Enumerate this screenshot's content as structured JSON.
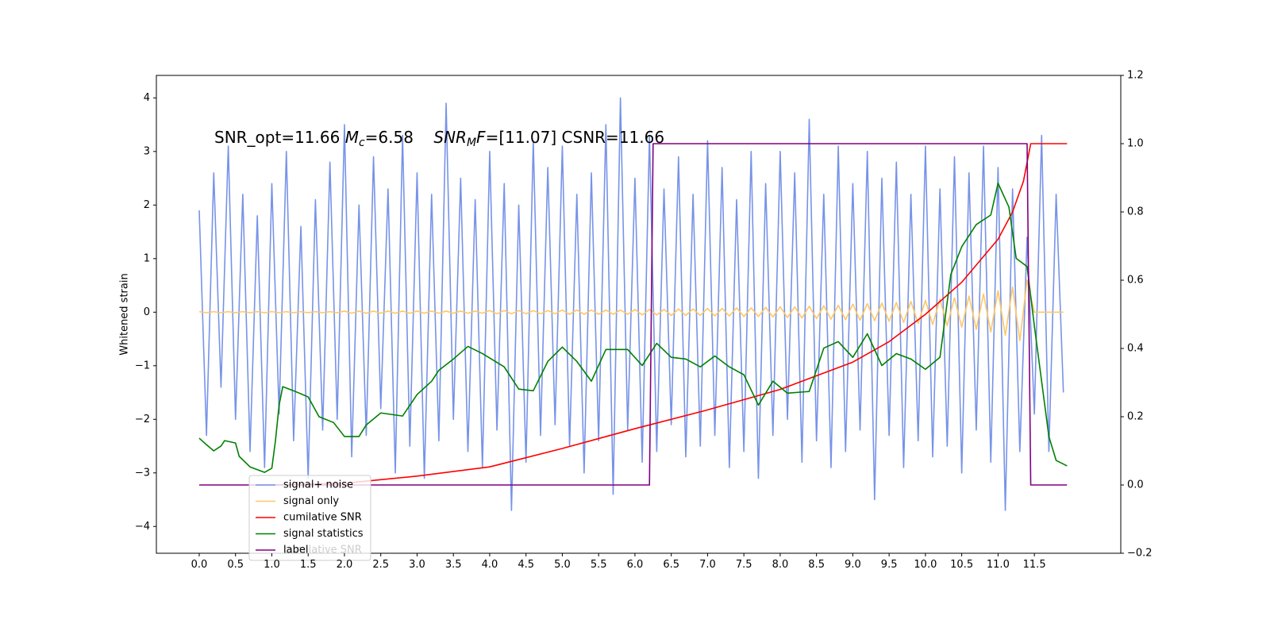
{
  "chart_data": {
    "type": "line",
    "y_label": "Whitened strain",
    "annotation_parts": [
      "SNR_opt=11.66 ",
      "M",
      "c",
      "=6.58    ",
      "SNR",
      "M",
      "F",
      "=[11.07] CSNR=11.66"
    ],
    "xlim": [
      -0.59,
      12.69
    ],
    "ylim": [
      -4.5,
      4.42
    ],
    "y2lim": [
      -0.2,
      1.2
    ],
    "xticks": [
      {
        "value": 0,
        "label": "0.0"
      },
      0.5,
      {
        "value": 1,
        "label": "1.0"
      },
      1.5,
      {
        "value": 2,
        "label": "2.0"
      },
      2.5,
      {
        "value": 3,
        "label": "3.0"
      },
      3.5,
      {
        "value": 4,
        "label": "4.0"
      },
      4.5,
      {
        "value": 5,
        "label": "5.0"
      },
      5.5,
      {
        "value": 6,
        "label": "6.0"
      },
      6.5,
      {
        "value": 7,
        "label": "7.0"
      },
      7.5,
      {
        "value": 8,
        "label": "8.0"
      },
      8.5,
      {
        "value": 9,
        "label": "9.0"
      },
      9.5,
      {
        "value": 10,
        "label": "10.0"
      },
      10.5,
      {
        "value": 11,
        "label": "11.0"
      },
      11.5
    ],
    "yticks": [
      {
        "value": -4,
        "label": "−4"
      },
      {
        "value": -3,
        "label": "−3"
      },
      {
        "value": -2,
        "label": "−2"
      },
      {
        "value": -1,
        "label": "−1"
      },
      0,
      1,
      2,
      3,
      4
    ],
    "y2ticks": [
      {
        "value": -0.2,
        "label": "−0.2"
      },
      {
        "value": 0,
        "label": "0.0"
      },
      0.2,
      0.4,
      0.6,
      0.8,
      {
        "value": 1,
        "label": "1.0"
      },
      1.2
    ],
    "grid": false,
    "legend": "lower left",
    "x": [
      0.0,
      0.1,
      0.2,
      0.3,
      0.4,
      0.5,
      0.6,
      0.7,
      0.8,
      0.9,
      1.0,
      1.1,
      1.2,
      1.3,
      1.4,
      1.5,
      1.6,
      1.7,
      1.8,
      1.9,
      2.0,
      2.1,
      2.2,
      2.3,
      2.4,
      2.5,
      2.6,
      2.7,
      2.8,
      2.9,
      3.0,
      3.1,
      3.2,
      3.3,
      3.4,
      3.5,
      3.6,
      3.7,
      3.8,
      3.9,
      4.0,
      4.1,
      4.2,
      4.3,
      4.4,
      4.5,
      4.6,
      4.7,
      4.8,
      4.9,
      5.0,
      5.1,
      5.2,
      5.3,
      5.4,
      5.5,
      5.6,
      5.7,
      5.8,
      5.9,
      6.0,
      6.1,
      6.2,
      6.3,
      6.4,
      6.5,
      6.6,
      6.7,
      6.8,
      6.9,
      7.0,
      7.1,
      7.2,
      7.3,
      7.4,
      7.5,
      7.6,
      7.7,
      7.8,
      7.9,
      8.0,
      8.1,
      8.2,
      8.3,
      8.4,
      8.5,
      8.6,
      8.7,
      8.8,
      8.9,
      9.0,
      9.1,
      9.2,
      9.3,
      9.4,
      9.5,
      9.6,
      9.7,
      9.8,
      9.9,
      10.0,
      10.1,
      10.2,
      10.3,
      10.4,
      10.5,
      10.6,
      10.7,
      10.8,
      10.9,
      11.0,
      11.1,
      11.2,
      11.3,
      11.4,
      11.5,
      11.6,
      11.7,
      11.8,
      11.9
    ],
    "series": [
      {
        "name": "signal+ noise",
        "color": "#7793e8",
        "values": [
          1.9,
          -2.3,
          2.6,
          -1.4,
          3.1,
          -2.0,
          2.2,
          -2.6,
          1.8,
          -2.9,
          2.4,
          -1.9,
          3.0,
          -2.4,
          1.6,
          -3.1,
          2.1,
          -2.2,
          2.8,
          -2.0,
          3.5,
          -2.7,
          2.0,
          -2.3,
          2.9,
          -1.8,
          2.3,
          -3.0,
          3.3,
          -2.5,
          2.6,
          -3.1,
          2.2,
          -2.4,
          3.9,
          -2.0,
          2.5,
          -2.6,
          2.1,
          -2.9,
          3.0,
          -2.2,
          2.4,
          -3.7,
          2.0,
          -2.8,
          3.2,
          -2.3,
          2.7,
          -2.1,
          3.1,
          -2.5,
          2.2,
          -3.0,
          2.6,
          -2.4,
          3.5,
          -3.4,
          4.0,
          -2.2,
          2.5,
          -2.8,
          3.3,
          -2.6,
          2.3,
          -2.1,
          2.9,
          -2.7,
          2.2,
          -2.5,
          3.2,
          -2.3,
          2.7,
          -2.9,
          2.1,
          -2.6,
          3.0,
          -3.1,
          2.4,
          -2.3,
          3.0,
          -2.0,
          2.6,
          -2.8,
          3.6,
          -2.4,
          2.2,
          -2.9,
          3.1,
          -2.6,
          2.4,
          -2.2,
          3.0,
          -3.5,
          2.5,
          -2.3,
          2.8,
          -2.9,
          2.2,
          -2.4,
          3.1,
          -2.7,
          2.3,
          -2.5,
          2.9,
          -3.0,
          2.6,
          -2.2,
          3.1,
          -2.8,
          2.7,
          -3.7,
          2.3,
          -2.6,
          1.4,
          -1.9,
          3.3,
          -2.6,
          2.2,
          -1.5
        ]
      },
      {
        "name": "signal only",
        "color": "#ffc766",
        "values": [
          0.01,
          -0.01,
          0.01,
          -0.01,
          0.01,
          -0.01,
          0.01,
          -0.01,
          0.01,
          -0.01,
          0.01,
          -0.01,
          0.01,
          -0.01,
          0.01,
          -0.01,
          0.01,
          -0.01,
          0.01,
          -0.01,
          0.02,
          -0.02,
          0.02,
          -0.02,
          0.02,
          -0.02,
          0.02,
          -0.02,
          0.02,
          -0.02,
          0.02,
          -0.02,
          0.02,
          -0.02,
          0.02,
          -0.02,
          0.02,
          -0.02,
          0.02,
          -0.02,
          0.03,
          -0.03,
          0.03,
          -0.03,
          0.03,
          -0.03,
          0.03,
          -0.03,
          0.03,
          -0.03,
          0.04,
          -0.04,
          0.04,
          -0.04,
          0.04,
          -0.04,
          0.04,
          -0.04,
          0.04,
          -0.04,
          0.05,
          -0.05,
          0.05,
          -0.05,
          0.05,
          -0.06,
          0.06,
          -0.06,
          0.06,
          -0.06,
          0.07,
          -0.07,
          0.07,
          -0.07,
          0.08,
          -0.08,
          0.08,
          -0.08,
          0.09,
          -0.09,
          0.1,
          -0.1,
          0.1,
          -0.11,
          0.11,
          -0.12,
          0.12,
          -0.13,
          0.13,
          -0.14,
          0.15,
          -0.15,
          0.16,
          -0.16,
          0.17,
          -0.17,
          0.18,
          -0.19,
          0.2,
          -0.21,
          0.22,
          -0.23,
          0.24,
          -0.25,
          0.27,
          -0.28,
          0.3,
          -0.32,
          0.34,
          -0.37,
          0.4,
          -0.43,
          0.47,
          -0.53,
          0.6,
          0,
          0,
          0,
          0,
          0
        ]
      },
      {
        "name": "cumilative SNR",
        "color": "red",
        "axis": "y2",
        "x": [
          0.75,
          1.0,
          2.0,
          3.0,
          4.0,
          5.0,
          6.0,
          7.0,
          8.0,
          9.0,
          9.5,
          10.0,
          10.5,
          11.0,
          11.2,
          11.35,
          11.45,
          11.95
        ],
        "values": [
          0,
          0,
          0.005,
          0.026,
          0.053,
          0.107,
          0.165,
          0.22,
          0.28,
          0.36,
          0.42,
          0.5,
          0.594,
          0.72,
          0.8,
          0.89,
          1.0,
          1.0
        ]
      },
      {
        "name": "signal statistics",
        "color": "green",
        "axis": "y2",
        "x": [
          0.0,
          0.1,
          0.2,
          0.3,
          0.35,
          0.5,
          0.55,
          0.7,
          0.9,
          1.0,
          1.05,
          1.1,
          1.15,
          1.3,
          1.5,
          1.65,
          1.85,
          2.0,
          2.2,
          2.3,
          2.5,
          2.8,
          3.0,
          3.2,
          3.3,
          3.5,
          3.7,
          3.9,
          4.2,
          4.4,
          4.6,
          4.8,
          5.0,
          5.2,
          5.4,
          5.6,
          5.9,
          6.1,
          6.3,
          6.5,
          6.7,
          6.9,
          7.1,
          7.3,
          7.5,
          7.7,
          7.9,
          8.1,
          8.4,
          8.6,
          8.8,
          9.0,
          9.2,
          9.4,
          9.6,
          9.8,
          10.0,
          10.2,
          10.35,
          10.5,
          10.7,
          10.9,
          11.0,
          11.15,
          11.25,
          11.4,
          11.5,
          11.6,
          11.7,
          11.8,
          11.95
        ],
        "values": [
          0.137,
          0.118,
          0.1,
          0.114,
          0.13,
          0.123,
          0.084,
          0.053,
          0.037,
          0.049,
          0.13,
          0.234,
          0.288,
          0.276,
          0.258,
          0.2,
          0.183,
          0.142,
          0.142,
          0.176,
          0.211,
          0.202,
          0.265,
          0.304,
          0.336,
          0.369,
          0.406,
          0.385,
          0.346,
          0.281,
          0.276,
          0.362,
          0.404,
          0.362,
          0.304,
          0.397,
          0.397,
          0.35,
          0.415,
          0.374,
          0.369,
          0.346,
          0.378,
          0.346,
          0.323,
          0.234,
          0.304,
          0.269,
          0.274,
          0.401,
          0.42,
          0.374,
          0.443,
          0.35,
          0.385,
          0.369,
          0.339,
          0.374,
          0.617,
          0.698,
          0.763,
          0.791,
          0.884,
          0.814,
          0.664,
          0.64,
          0.466,
          0.304,
          0.142,
          0.072,
          0.056
        ]
      },
      {
        "name": "label",
        "color": "purple",
        "axis": "y2",
        "x": [
          0.0,
          6.2,
          6.25,
          11.4,
          11.45,
          11.95
        ],
        "values": [
          0,
          0,
          1,
          1,
          0,
          0
        ]
      }
    ]
  }
}
